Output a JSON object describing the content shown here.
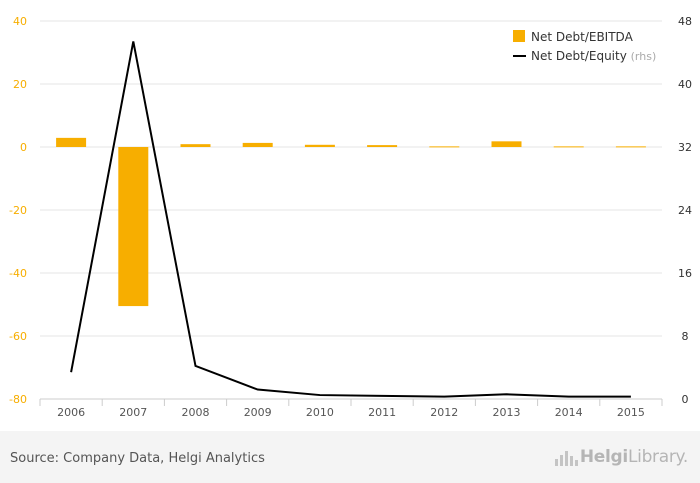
{
  "chart_data": {
    "type": "bar",
    "categories": [
      "2006",
      "2007",
      "2008",
      "2009",
      "2010",
      "2011",
      "2012",
      "2013",
      "2014",
      "2015"
    ],
    "series": [
      {
        "name": "Net Debt/EBITDA",
        "type": "bar",
        "axis": "left",
        "color": "#f7ae00",
        "values": [
          2.9,
          -50.5,
          0.9,
          1.3,
          0.7,
          0.6,
          0.2,
          1.8,
          0.2,
          0.2
        ]
      },
      {
        "name": "Net Debt/Equity",
        "name_suffix": "(rhs)",
        "type": "line",
        "axis": "right",
        "color": "#000000",
        "values": [
          3.4,
          45.4,
          4.2,
          1.2,
          0.5,
          0.4,
          0.3,
          0.6,
          0.3,
          0.3
        ]
      }
    ],
    "ylim_left": [
      -80,
      40
    ],
    "yticks_left": [
      -80,
      -60,
      -40,
      -20,
      0,
      20,
      40
    ],
    "ylim_right": [
      0,
      48
    ],
    "yticks_right": [
      0,
      8,
      16,
      24,
      32,
      40,
      48
    ],
    "grid": true,
    "legend_position": "top-right",
    "left_axis_color": "#f7ae00",
    "right_axis_color": "#333333"
  },
  "footer": {
    "source": "Source: Company Data, Helgi Analytics",
    "logo_bold": "Helgi",
    "logo_light": "Library."
  }
}
